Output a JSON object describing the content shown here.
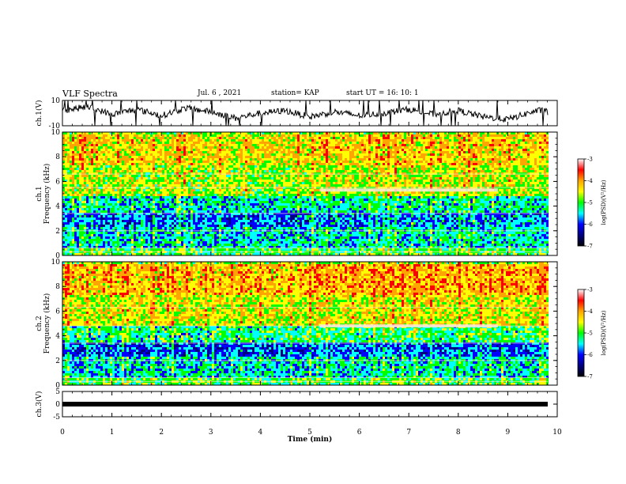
{
  "header": {
    "title": "VLF Spectra",
    "date": "Jul. 6 , 2021",
    "station": "station= KAP",
    "start": "start UT = 16: 10: 1"
  },
  "colorbar": {
    "label": "log(PSD)(V²/Hz)",
    "ticks": [
      "-3",
      "-4",
      "-5",
      "-6",
      "-7"
    ],
    "colors": [
      "#ffffff",
      "#ff0000",
      "#ffa500",
      "#ffff00",
      "#00ff00",
      "#00ffff",
      "#0000ff",
      "#000080",
      "#000000"
    ]
  },
  "chart_data": [
    {
      "type": "line",
      "panel": "ch1-waveform",
      "ylabel": "ch.1(V)",
      "ylim": [
        -10,
        10
      ],
      "yticks": [
        "10",
        "-10"
      ],
      "x": [
        0,
        0.5,
        1,
        1.5,
        2,
        2.5,
        3,
        3.5,
        4,
        4.5,
        5,
        5.5,
        6,
        6.5,
        7,
        7.5,
        8,
        8.5,
        9,
        9.5,
        9.8
      ],
      "values": [
        2,
        5,
        -1,
        3,
        -2,
        4,
        1,
        -4,
        0,
        2,
        -3,
        1,
        -2,
        0,
        3,
        -1,
        2,
        -3,
        -5,
        1,
        3
      ]
    },
    {
      "type": "heatmap",
      "panel": "ch1-spectrogram",
      "ylabel": "ch.1",
      "ylabel2": "Frequency (kHz)",
      "ylim": [
        0,
        10
      ],
      "yticks": [
        "0",
        "2",
        "4",
        "6",
        "8",
        "10"
      ],
      "bands": [
        {
          "f": [
            0,
            0.7
          ],
          "level": -4.8
        },
        {
          "f": [
            0.7,
            2.5
          ],
          "level": -5.3
        },
        {
          "f": [
            2.5,
            3.5
          ],
          "level": -5.7
        },
        {
          "f": [
            3.5,
            5.0
          ],
          "level": -5.2
        },
        {
          "f": [
            5.0,
            7.5
          ],
          "level": -4.4
        },
        {
          "f": [
            7.5,
            10
          ],
          "level": -4.0
        }
      ],
      "lines_kHz": [
        0.3,
        0.6,
        2.0,
        3.4,
        5.5,
        6.6
      ]
    },
    {
      "type": "heatmap",
      "panel": "ch2-spectrogram",
      "ylabel": "ch.2",
      "ylabel2": "Frequency (kHz)",
      "ylim": [
        0,
        10
      ],
      "yticks": [
        "0",
        "2",
        "4",
        "6",
        "8",
        "10"
      ],
      "bands": [
        {
          "f": [
            0,
            0.7
          ],
          "level": -4.8
        },
        {
          "f": [
            0.7,
            2.5
          ],
          "level": -5.3
        },
        {
          "f": [
            2.5,
            3.5
          ],
          "level": -5.8
        },
        {
          "f": [
            3.5,
            5.0
          ],
          "level": -5.0
        },
        {
          "f": [
            5.0,
            7.5
          ],
          "level": -4.2
        },
        {
          "f": [
            7.5,
            10
          ],
          "level": -3.8
        }
      ],
      "lines_kHz": [
        0.3,
        0.6,
        2.0,
        3.4,
        4.8,
        6.3
      ]
    },
    {
      "type": "line",
      "panel": "ch3-waveform",
      "ylabel": "ch.3(V)",
      "ylim": [
        -5,
        5
      ],
      "yticks": [
        "5",
        "0",
        "-5"
      ],
      "x": [
        0,
        9.8
      ],
      "values": [
        0,
        0
      ]
    }
  ],
  "xaxis": {
    "label": "Time (min)",
    "ticks": [
      "0",
      "1",
      "2",
      "3",
      "4",
      "5",
      "6",
      "7",
      "8",
      "9",
      "10"
    ],
    "xlim": [
      0,
      10
    ]
  }
}
